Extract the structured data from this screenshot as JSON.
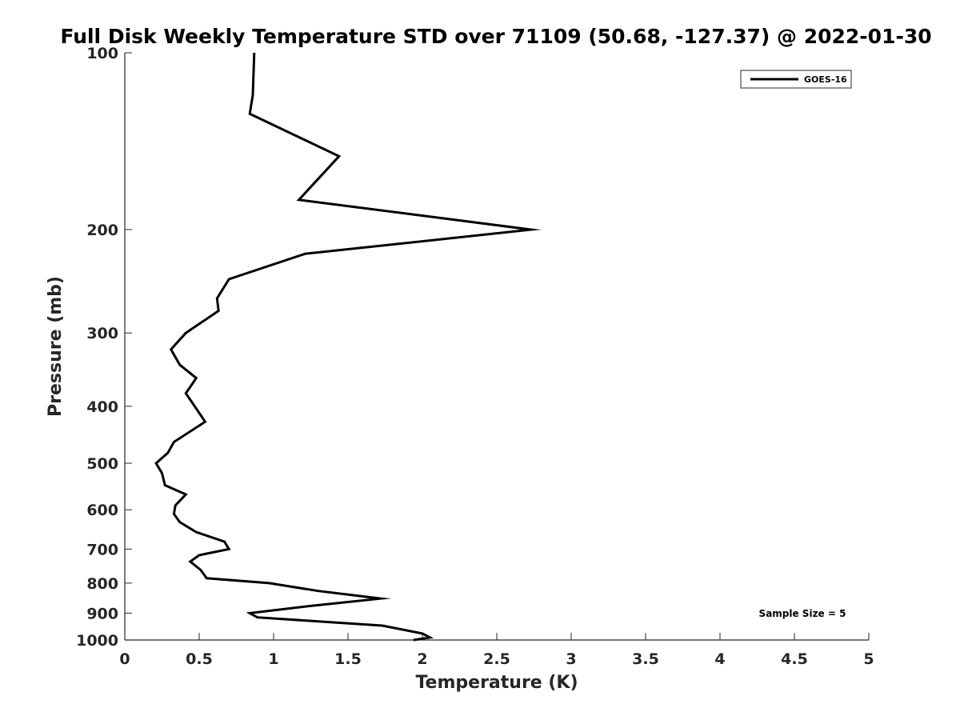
{
  "chart_data": {
    "type": "line",
    "title": "Full Disk Weekly Temperature STD over 71109 (50.68, -127.37) @ 2022-01-30",
    "xlabel": "Temperature (K)",
    "ylabel": "Pressure (mb)",
    "xlim": [
      0,
      5
    ],
    "ylim": [
      100,
      1000
    ],
    "y_scale": "log",
    "y_reversed": true,
    "x_ticks": [
      "0",
      "0.5",
      "1",
      "1.5",
      "2",
      "2.5",
      "3",
      "3.5",
      "4",
      "4.5",
      "5"
    ],
    "y_ticks": [
      "100",
      "200",
      "300",
      "400",
      "500",
      "600",
      "700",
      "800",
      "900",
      "1000"
    ],
    "grid": false,
    "legend_position": "top-right",
    "annotation": "Sample Size = 5",
    "series": [
      {
        "name": "GOES-16",
        "color": "#000000",
        "x": [
          0.87,
          0.86,
          0.84,
          1.44,
          1.17,
          2.73,
          1.21,
          0.7,
          0.62,
          0.63,
          0.41,
          0.31,
          0.37,
          0.48,
          0.41,
          0.47,
          0.54,
          0.33,
          0.29,
          0.21,
          0.25,
          0.27,
          0.41,
          0.34,
          0.33,
          0.37,
          0.48,
          0.67,
          0.7,
          0.5,
          0.44,
          0.51,
          0.55,
          0.97,
          1.3,
          1.72,
          1.25,
          0.84,
          0.89,
          1.73,
          2.0,
          2.05,
          1.94
        ],
        "y": [
          100,
          118,
          127,
          150,
          178,
          200,
          220,
          243,
          262,
          275,
          300,
          320,
          340,
          358,
          380,
          400,
          425,
          460,
          480,
          500,
          520,
          545,
          565,
          590,
          610,
          630,
          655,
          680,
          700,
          717,
          735,
          760,
          785,
          800,
          825,
          850,
          875,
          900,
          915,
          945,
          975,
          990,
          1000
        ]
      }
    ]
  }
}
